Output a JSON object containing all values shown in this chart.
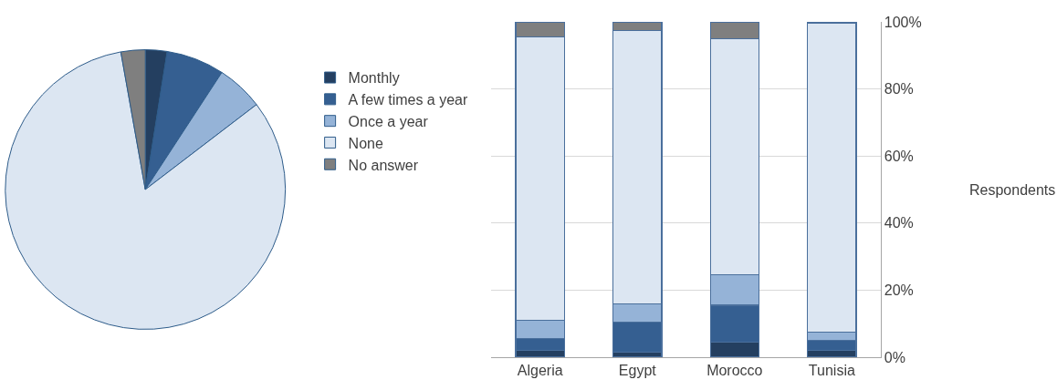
{
  "chart_data": [
    {
      "type": "pie",
      "categories": [
        "Monthly",
        "A few times a year",
        "Once a year",
        "None",
        "No answer"
      ],
      "values": [
        2.5,
        6.7,
        5.4,
        82.6,
        2.8
      ],
      "colors": [
        "#243f60",
        "#355f91",
        "#95b3d7",
        "#dce6f2",
        "#7f7f7f"
      ],
      "legend": "right"
    },
    {
      "type": "bar",
      "stacked": true,
      "categories": [
        "Algeria",
        "Egypt",
        "Morocco",
        "Tunisia"
      ],
      "series": [
        {
          "color": "#243f60",
          "values": [
            2,
            1.5,
            4.5,
            2
          ]
        },
        {
          "color": "#355f91",
          "values": [
            3.5,
            9,
            11,
            3
          ]
        },
        {
          "color": "#95b3d7",
          "values": [
            5.5,
            5.5,
            9,
            2.5
          ]
        },
        {
          "color": "#dce6f2",
          "values": [
            84.5,
            81.5,
            70.5,
            92
          ]
        },
        {
          "color": "#7f7f7f",
          "values": [
            4.5,
            2.5,
            5,
            0.5
          ]
        }
      ],
      "ylim": [
        0,
        100
      ],
      "yticks": [
        {
          "value": 0,
          "label": "0%"
        },
        {
          "value": 20,
          "label": "20%"
        },
        {
          "value": 40,
          "label": "40%"
        },
        {
          "value": 60,
          "label": "60%"
        },
        {
          "value": 80,
          "label": "80%"
        },
        {
          "value": 100,
          "label": "100%"
        }
      ],
      "ylabel": "Respondents",
      "grid": "y"
    }
  ]
}
